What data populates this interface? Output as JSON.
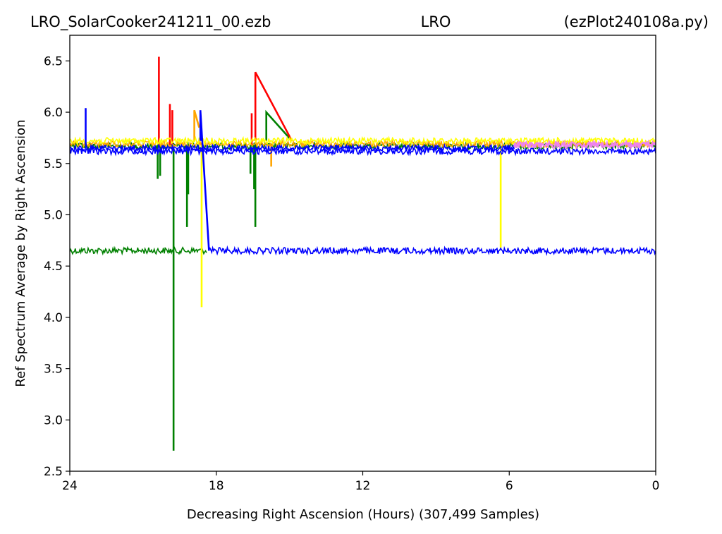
{
  "chart_data": {
    "type": "line",
    "title_parts": [
      "LRO_SolarCooker241211_00.ezb",
      "LRO",
      "(ezPlot240108a.py)"
    ],
    "xlabel": "Decreasing Right Ascension (Hours) (307,499 Samples)",
    "ylabel": "Ref Spectrum Average by Right Ascension",
    "xlim": [
      24,
      0
    ],
    "ylim": [
      2.5,
      6.75
    ],
    "x_reversed": true,
    "x_ticks": [
      24,
      18,
      12,
      6,
      0
    ],
    "y_ticks": [
      2.5,
      3.0,
      3.5,
      4.0,
      4.5,
      5.0,
      5.5,
      6.0,
      6.5
    ],
    "y_tick_labels": [
      "2.5",
      "3.0",
      "3.5",
      "4.0",
      "4.5",
      "5.0",
      "5.5",
      "6.0",
      "6.5"
    ],
    "grid": false,
    "legend": "none",
    "colors": {
      "red": "#ff0000",
      "green": "#008000",
      "blue": "#0000ff",
      "orange": "#ffa500",
      "yellow": "#ffff00",
      "violet": "#ee82ee"
    },
    "series": [
      {
        "color": "green",
        "bands": [
          {
            "x_from": 24,
            "x_to": 18.4,
            "y": 4.65
          },
          {
            "x_from": 24,
            "x_to": 0,
            "y": 5.67
          }
        ],
        "spikes": [
          {
            "x": 19.75,
            "y": 2.7
          },
          {
            "x": 20.4,
            "y": 5.35
          },
          {
            "x": 20.3,
            "y": 5.38
          },
          {
            "x": 19.2,
            "y": 4.88
          },
          {
            "x": 19.15,
            "y": 5.2
          },
          {
            "x": 16.6,
            "y": 5.4
          },
          {
            "x": 16.4,
            "y": 4.88
          },
          {
            "x": 16.45,
            "y": 5.25
          }
        ],
        "ramps": [
          [
            [
              15.95,
              5.72
            ],
            [
              15.95,
              6.0
            ],
            [
              14.9,
              5.72
            ]
          ]
        ]
      },
      {
        "color": "red",
        "bands": [],
        "spikes": [
          {
            "x": 20.35,
            "y": 6.54
          },
          {
            "x": 19.9,
            "y": 6.08
          },
          {
            "x": 19.8,
            "y": 6.02
          },
          {
            "x": 16.55,
            "y": 5.99
          }
        ],
        "ramps": [
          [
            [
              16.4,
              5.72
            ],
            [
              16.4,
              6.39
            ],
            [
              14.9,
              5.72
            ]
          ]
        ]
      },
      {
        "color": "orange",
        "bands": [
          {
            "x_from": 24,
            "x_to": 0,
            "y": 5.69
          }
        ],
        "spikes": [
          {
            "x": 15.75,
            "y": 5.47
          }
        ],
        "ramps": [
          [
            [
              18.9,
              5.72
            ],
            [
              18.9,
              6.02
            ],
            [
              18.7,
              5.85
            ]
          ]
        ]
      },
      {
        "color": "yellow",
        "bands": [
          {
            "x_from": 24,
            "x_to": 0,
            "y": 5.72
          }
        ],
        "spikes": [
          {
            "x": 18.6,
            "y": 4.1
          },
          {
            "x": 6.35,
            "y": 4.68
          }
        ],
        "ramps": []
      },
      {
        "color": "blue",
        "bands": [
          {
            "x_from": 18.3,
            "x_to": 0,
            "y": 4.65
          },
          {
            "x_from": 24,
            "x_to": 5.8,
            "y": 5.65
          },
          {
            "x_from": 24,
            "x_to": 0,
            "y": 5.62
          }
        ],
        "spikes": [
          {
            "x": 23.35,
            "y": 6.04
          }
        ],
        "ramps": [
          [
            [
              18.65,
              5.72
            ],
            [
              18.65,
              6.02
            ],
            [
              18.3,
              4.65
            ]
          ]
        ]
      },
      {
        "color": "violet",
        "bands": [
          {
            "x_from": 5.8,
            "x_to": 0,
            "y": 5.68
          }
        ],
        "spikes": [],
        "ramps": []
      }
    ]
  }
}
